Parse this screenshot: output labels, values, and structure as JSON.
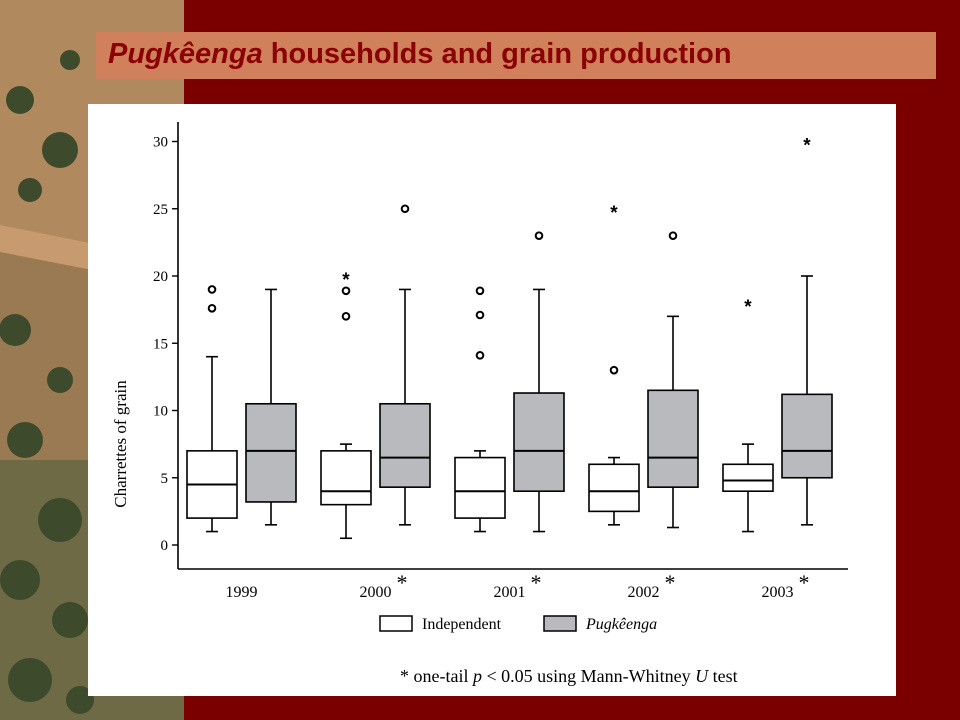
{
  "slide": {
    "title_italic": "Pugkêenga",
    "title_rest": " households and grain production"
  },
  "footnote": {
    "star": "* one-tail ",
    "p": "p",
    "mid": " < 0.05 using Mann-Whitney ",
    "u": "U",
    "tail": " test"
  },
  "colors": {
    "background": "#7a0000",
    "title_band": "#d0805a",
    "title_text": "#8b0000",
    "independent_fill": "#ffffff",
    "pugkeenga_fill": "#b8babd"
  },
  "chart_data": {
    "type": "boxplot",
    "ylabel": "Charrettes of grain",
    "ylim": [
      0,
      31
    ],
    "yticks": [
      0,
      5,
      10,
      15,
      20,
      25,
      30
    ],
    "categories": [
      "1999",
      "2000",
      "2001",
      "2002",
      "2003"
    ],
    "category_marks": [
      "",
      "*",
      "*",
      "*",
      "*"
    ],
    "legend": {
      "position": "bottom",
      "entries": [
        "Independent",
        "Pugkêenga"
      ]
    },
    "series": [
      {
        "name": "Independent",
        "boxes": [
          {
            "min": 1,
            "q1": 2,
            "median": 4.5,
            "q3": 7,
            "max": 14,
            "outliers": [
              17.6,
              19
            ],
            "extremes": []
          },
          {
            "min": 0.5,
            "q1": 3,
            "median": 4,
            "q3": 7,
            "max": 7.5,
            "outliers": [
              17,
              18.9
            ],
            "extremes": [
              20
            ]
          },
          {
            "min": 1,
            "q1": 2,
            "median": 4,
            "q3": 6.5,
            "max": 7,
            "outliers": [
              14.1,
              17.1,
              18.9
            ],
            "extremes": []
          },
          {
            "min": 1.5,
            "q1": 2.5,
            "median": 4,
            "q3": 6,
            "max": 6.5,
            "outliers": [
              13
            ],
            "extremes": [
              25
            ]
          },
          {
            "min": 1,
            "q1": 4,
            "median": 4.8,
            "q3": 6,
            "max": 7.5,
            "outliers": [],
            "extremes": [
              18
            ]
          }
        ]
      },
      {
        "name": "Pugkêenga",
        "boxes": [
          {
            "min": 1.5,
            "q1": 3.2,
            "median": 7,
            "q3": 10.5,
            "max": 19,
            "outliers": [],
            "extremes": []
          },
          {
            "min": 1.5,
            "q1": 4.3,
            "median": 6.5,
            "q3": 10.5,
            "max": 19,
            "outliers": [
              25
            ],
            "extremes": []
          },
          {
            "min": 1,
            "q1": 4,
            "median": 7,
            "q3": 11.3,
            "max": 19,
            "outliers": [
              23
            ],
            "extremes": []
          },
          {
            "min": 1.3,
            "q1": 4.3,
            "median": 6.5,
            "q3": 11.5,
            "max": 17,
            "outliers": [
              23
            ],
            "extremes": []
          },
          {
            "min": 1.5,
            "q1": 5,
            "median": 7,
            "q3": 11.2,
            "max": 20,
            "outliers": [],
            "extremes": [
              30
            ]
          }
        ]
      }
    ]
  }
}
